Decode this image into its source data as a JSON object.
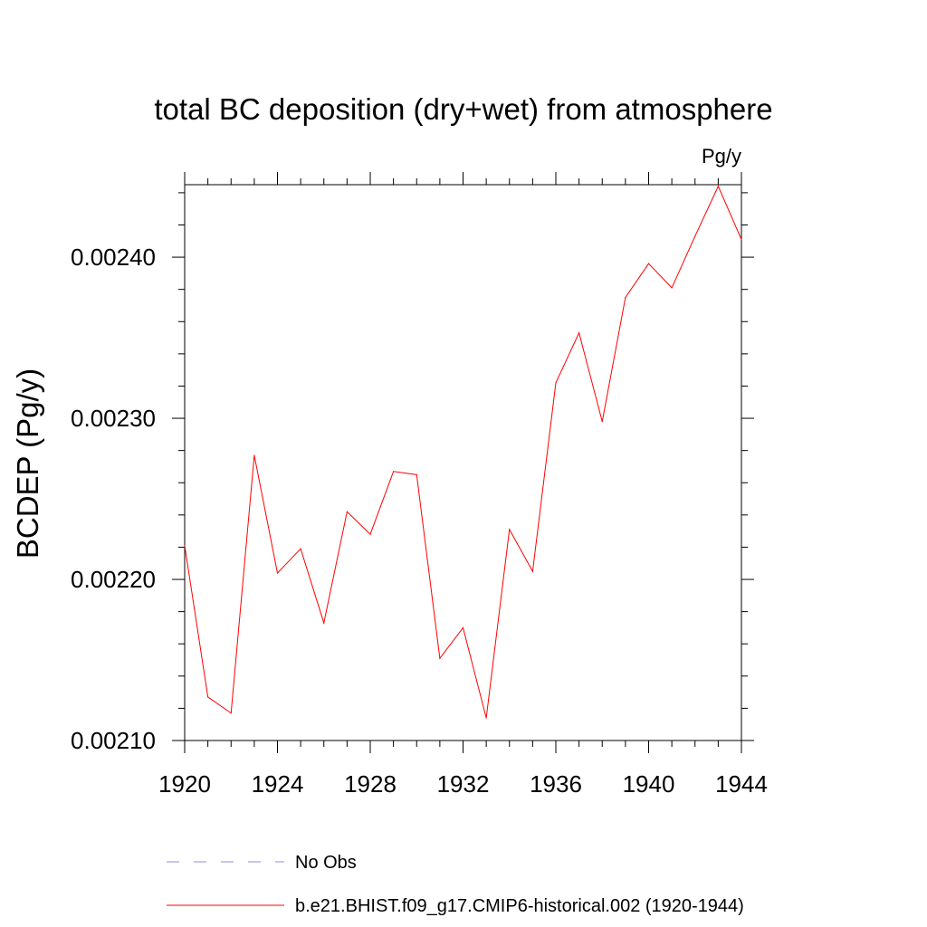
{
  "chart_data": {
    "type": "line",
    "title": "total BC deposition (dry+wet) from atmosphere",
    "units_label": "Pg/y",
    "xlabel": "",
    "ylabel": "BCDEP  (Pg/y)",
    "xlim": [
      1920,
      1944
    ],
    "ylim": [
      0.0021,
      0.002445
    ],
    "x_ticks": [
      "1920",
      "1924",
      "1928",
      "1932",
      "1936",
      "1940",
      "1944"
    ],
    "y_ticks": [
      "0.00210",
      "0.00220",
      "0.00230",
      "0.00240"
    ],
    "x": [
      1920,
      1921,
      1922,
      1923,
      1924,
      1925,
      1926,
      1927,
      1928,
      1929,
      1930,
      1931,
      1932,
      1933,
      1934,
      1935,
      1936,
      1937,
      1938,
      1939,
      1940,
      1941,
      1942,
      1943,
      1944
    ],
    "series": [
      {
        "name": "b.e21.BHIST.f09_g17.CMIP6-historical.002 (1920-1944)",
        "color": "#ff0000",
        "values": [
          0.002221,
          0.002127,
          0.002117,
          0.002277,
          0.002204,
          0.002219,
          0.002173,
          0.002242,
          0.002228,
          0.002267,
          0.002265,
          0.002151,
          0.00217,
          0.002114,
          0.002231,
          0.002205,
          0.002322,
          0.002353,
          0.002298,
          0.002375,
          0.002396,
          0.002381,
          0.002413,
          0.002444,
          0.002411
        ]
      }
    ],
    "legend": [
      {
        "label": "No Obs",
        "color": "#8c8cd9",
        "style": "dashed"
      },
      {
        "label": "b.e21.BHIST.f09_g17.CMIP6-historical.002 (1920-1944)",
        "color": "#ff0000",
        "style": "solid"
      }
    ],
    "legend_position": "bottom",
    "grid": false
  }
}
